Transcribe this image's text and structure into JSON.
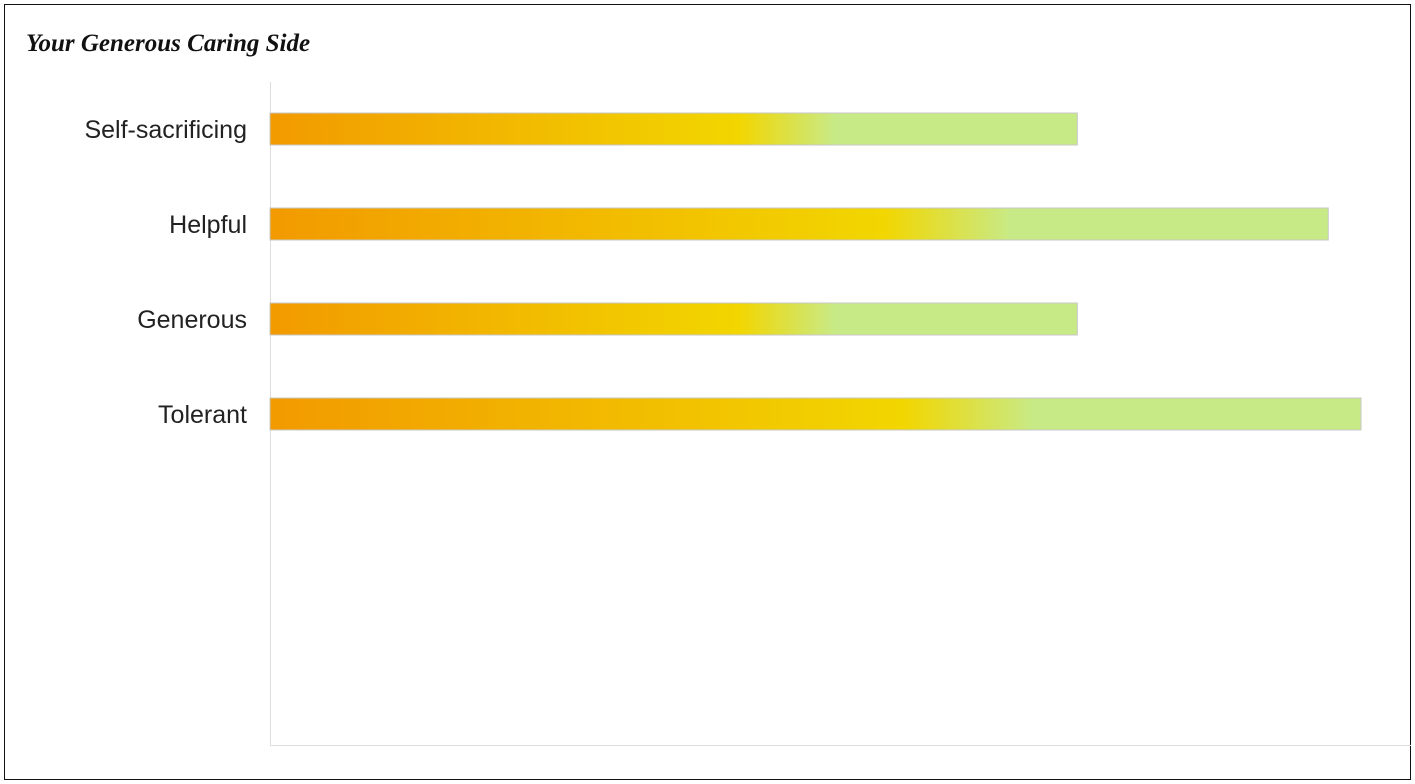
{
  "chart_data": {
    "type": "bar",
    "orientation": "horizontal",
    "title": "Your Generous Caring Side",
    "xlabel": "",
    "ylabel": "",
    "categories": [
      "Self-sacrificing",
      "Helpful",
      "Generous",
      "Tolerant"
    ],
    "values": [
      74,
      97,
      74,
      100
    ],
    "xlim": [
      0,
      100
    ],
    "grid": false,
    "legend": "none",
    "gradient_colors": [
      "#f29a00",
      "#f2d600",
      "#c8ea86"
    ]
  }
}
